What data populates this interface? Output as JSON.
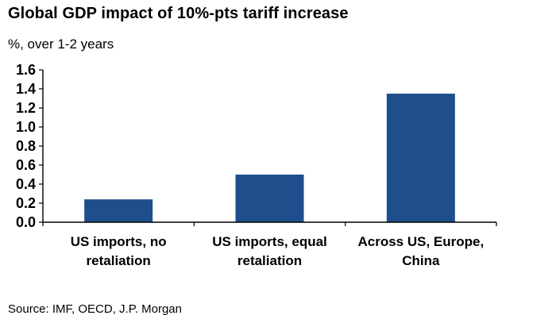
{
  "chart_data": {
    "type": "bar",
    "title": "Global GDP impact of 10%-pts tariff increase",
    "subtitle": "%, over 1-2 years",
    "categories": [
      [
        "US imports, no",
        "retaliation"
      ],
      [
        "US imports, equal",
        "retaliation"
      ],
      [
        "Across US, Europe,",
        "China"
      ]
    ],
    "values": [
      0.24,
      0.5,
      1.35
    ],
    "ylim": [
      0,
      1.6
    ],
    "yticks": [
      "0.0",
      "0.2",
      "0.4",
      "0.6",
      "0.8",
      "1.0",
      "1.2",
      "1.4",
      "1.6"
    ],
    "grid": false,
    "bar_color": "#1f4e8c",
    "source": "Source: IMF, OECD, J.P. Morgan"
  }
}
